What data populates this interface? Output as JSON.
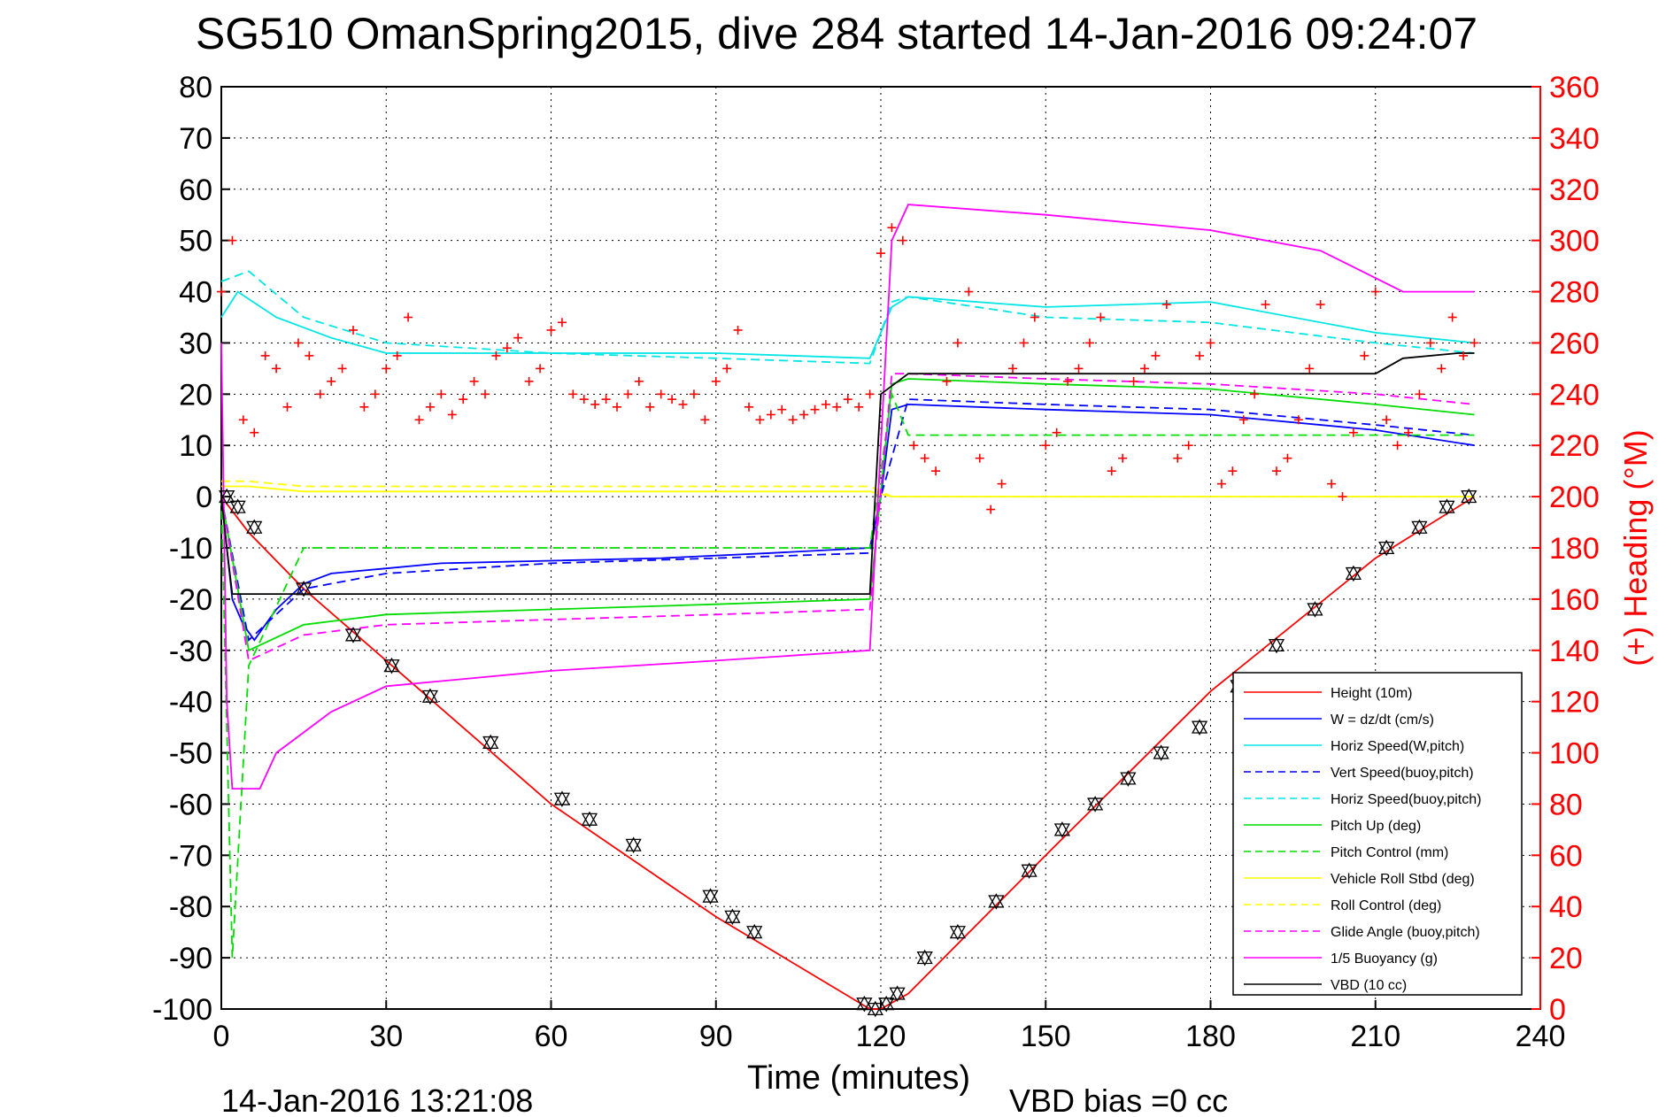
{
  "chart_data": {
    "type": "line",
    "title": "SG510 OmanSpring2015, dive 284 started 14-Jan-2016 09:24:07",
    "xlabel": "Time (minutes)",
    "ylabel": "",
    "ylabel_right": "(+) Heading (°M)",
    "xlim": [
      0,
      240
    ],
    "ylim": [
      -100,
      80
    ],
    "ylim_right": [
      0,
      360
    ],
    "x_ticks": [
      0,
      30,
      60,
      90,
      120,
      150,
      180,
      210,
      240
    ],
    "y_ticks": [
      80,
      70,
      60,
      50,
      40,
      30,
      20,
      10,
      0,
      -10,
      -20,
      -30,
      -40,
      -50,
      -60,
      -70,
      -80,
      -90,
      -100
    ],
    "y_ticks_right": [
      360,
      340,
      320,
      300,
      280,
      260,
      240,
      220,
      200,
      180,
      160,
      140,
      120,
      100,
      80,
      60,
      40,
      20,
      0
    ],
    "grid": true,
    "legend_position": "bottom-right",
    "footer_left": "14-Jan-2016 13:21:08",
    "footer_right": "VBD bias =0 cc",
    "colors": {
      "heading": "#ff0000",
      "red": "#ff0000",
      "blue": "#0000ff",
      "cyan": "#00e5e5",
      "green": "#00dd00",
      "yellow": "#ffff00",
      "magenta": "#ff00ff",
      "black": "#000000"
    },
    "series": [
      {
        "name": "Height (10m)",
        "color": "#ff0000",
        "dash": "solid",
        "x": [
          0,
          5,
          15,
          30,
          60,
          90,
          118,
          120,
          125,
          150,
          180,
          210,
          228
        ],
        "y": [
          0,
          -7,
          -18,
          -32,
          -60,
          -82,
          -100,
          -100,
          -97,
          -70,
          -38,
          -12,
          0
        ]
      },
      {
        "name": "W = dz/dt (cm/s)",
        "color": "#0000ff",
        "dash": "solid",
        "x": [
          0,
          2,
          4,
          6,
          10,
          15,
          20,
          30,
          40,
          60,
          80,
          100,
          118,
          120,
          122,
          125,
          150,
          180,
          210,
          228
        ],
        "y": [
          0,
          -20,
          -25,
          -28,
          -22,
          -17,
          -15,
          -14,
          -13,
          -12.5,
          -12,
          -11,
          -10,
          0,
          17,
          18,
          17,
          16,
          13,
          10
        ]
      },
      {
        "name": "Horiz Speed(W,pitch)",
        "color": "#00e5e5",
        "dash": "solid",
        "x": [
          0,
          3,
          10,
          20,
          30,
          60,
          90,
          118,
          122,
          125,
          150,
          180,
          210,
          228
        ],
        "y": [
          35,
          40,
          35,
          31,
          28,
          28,
          28,
          27,
          37,
          39,
          37,
          38,
          32,
          30
        ]
      },
      {
        "name": "Vert Speed(buoy,pitch)",
        "color": "#0000ff",
        "dash": "dashed",
        "x": [
          0,
          5,
          15,
          30,
          60,
          90,
          118,
          120,
          125,
          150,
          180,
          210,
          228
        ],
        "y": [
          0,
          -28,
          -18,
          -15,
          -13,
          -12,
          -11,
          0,
          19,
          18,
          17,
          14,
          12
        ]
      },
      {
        "name": "Horiz Speed(buoy,pitch)",
        "color": "#00e5e5",
        "dash": "dashed",
        "x": [
          0,
          5,
          15,
          30,
          60,
          90,
          118,
          122,
          125,
          150,
          180,
          210,
          228
        ],
        "y": [
          42,
          44,
          35,
          30,
          28,
          27,
          26,
          38,
          39,
          35,
          34,
          30,
          28
        ]
      },
      {
        "name": "Pitch Up (deg)",
        "color": "#00dd00",
        "dash": "solid",
        "x": [
          0,
          5,
          15,
          30,
          60,
          90,
          118,
          122,
          125,
          150,
          180,
          210,
          228
        ],
        "y": [
          0,
          -30,
          -25,
          -23,
          -22,
          -21,
          -20,
          22,
          23,
          22,
          21,
          18,
          16
        ]
      },
      {
        "name": "Pitch Control (mm)",
        "color": "#00dd00",
        "dash": "dashed",
        "x": [
          0,
          2,
          5,
          15,
          118,
          122,
          125,
          228
        ],
        "y": [
          0,
          -90,
          -33,
          -10,
          -10,
          20,
          12,
          12
        ]
      },
      {
        "name": "Vehicle Roll Stbd (deg)",
        "color": "#ffff00",
        "dash": "solid",
        "x": [
          0,
          5,
          15,
          30,
          60,
          90,
          118,
          122,
          150,
          180,
          210,
          228
        ],
        "y": [
          2,
          2,
          1,
          1,
          1,
          1,
          1,
          0,
          0,
          0,
          0,
          0
        ]
      },
      {
        "name": "Roll Control (deg)",
        "color": "#ffff00",
        "dash": "dashed",
        "x": [
          0,
          5,
          15,
          30,
          60,
          90,
          118,
          122,
          150,
          180,
          210,
          228
        ],
        "y": [
          3,
          3,
          2,
          2,
          2,
          2,
          2,
          0,
          0,
          0,
          0,
          0
        ]
      },
      {
        "name": "Glide Angle (buoy,pitch)",
        "color": "#ff00ff",
        "dash": "dashed",
        "x": [
          0,
          5,
          15,
          30,
          60,
          90,
          118,
          122,
          125,
          150,
          180,
          210,
          228
        ],
        "y": [
          0,
          -32,
          -27,
          -25,
          -24,
          -23,
          -22,
          24,
          24,
          23,
          22,
          20,
          18
        ]
      },
      {
        "name": "1/5 Buoyancy (g)",
        "color": "#ff00ff",
        "dash": "solid",
        "x": [
          0,
          1,
          2,
          7,
          10,
          20,
          30,
          60,
          90,
          118,
          122,
          125,
          150,
          180,
          200,
          215,
          220,
          228
        ],
        "y": [
          30,
          -40,
          -57,
          -57,
          -50,
          -42,
          -37,
          -34,
          -32,
          -30,
          50,
          57,
          55,
          52,
          48,
          40,
          40,
          40
        ]
      },
      {
        "name": "VBD (10 cc)",
        "color": "#000000",
        "dash": "solid",
        "x": [
          0,
          1,
          2,
          118,
          120,
          125,
          210,
          215,
          225,
          228
        ],
        "y": [
          0,
          -10,
          -19,
          -19,
          20,
          24,
          24,
          27,
          28,
          28
        ]
      }
    ],
    "heading_series": {
      "name": "Heading (+)",
      "color": "#ff0000",
      "marker": "+",
      "x": [
        0,
        2,
        4,
        6,
        8,
        10,
        12,
        14,
        16,
        18,
        20,
        22,
        24,
        26,
        28,
        30,
        32,
        34,
        36,
        38,
        40,
        42,
        44,
        46,
        48,
        50,
        52,
        54,
        56,
        58,
        60,
        62,
        64,
        66,
        68,
        70,
        72,
        74,
        76,
        78,
        80,
        82,
        84,
        86,
        88,
        90,
        92,
        94,
        96,
        98,
        100,
        102,
        104,
        106,
        108,
        110,
        112,
        114,
        116,
        118,
        120,
        122,
        124,
        126,
        128,
        130,
        132,
        134,
        136,
        138,
        140,
        142,
        144,
        146,
        148,
        150,
        152,
        154,
        156,
        158,
        160,
        162,
        164,
        166,
        168,
        170,
        172,
        174,
        176,
        178,
        180,
        182,
        184,
        186,
        188,
        190,
        192,
        194,
        196,
        198,
        200,
        202,
        204,
        206,
        208,
        210,
        212,
        214,
        216,
        218,
        220,
        222,
        224,
        226,
        228
      ],
      "y": [
        280,
        300,
        230,
        225,
        255,
        250,
        235,
        260,
        255,
        240,
        245,
        250,
        265,
        235,
        240,
        250,
        255,
        270,
        230,
        235,
        240,
        232,
        238,
        245,
        240,
        255,
        258,
        262,
        245,
        250,
        265,
        268,
        240,
        238,
        236,
        238,
        235,
        240,
        245,
        235,
        240,
        238,
        236,
        240,
        230,
        245,
        250,
        265,
        235,
        230,
        232,
        234,
        230,
        232,
        234,
        236,
        235,
        238,
        235,
        240,
        295,
        305,
        300,
        220,
        215,
        210,
        245,
        260,
        280,
        215,
        195,
        205,
        250,
        260,
        270,
        220,
        225,
        245,
        250,
        260,
        270,
        210,
        215,
        245,
        250,
        255,
        275,
        215,
        220,
        255,
        260,
        205,
        210,
        230,
        240,
        275,
        210,
        215,
        230,
        250,
        275,
        205,
        200,
        225,
        255,
        280,
        230,
        220,
        225,
        240,
        260,
        250,
        270,
        255,
        260
      ]
    },
    "triangle_markers": {
      "name": "",
      "x": [
        1,
        3,
        6,
        15,
        24,
        31,
        38,
        49,
        62,
        67,
        75,
        89,
        93,
        97,
        117,
        119,
        121,
        123,
        128,
        134,
        141,
        147,
        153,
        159,
        165,
        171,
        178,
        185,
        192,
        199,
        206,
        212,
        218,
        223,
        227
      ],
      "y": [
        0,
        -2,
        -6,
        -18,
        -27,
        -33,
        -39,
        -48,
        -59,
        -63,
        -68,
        -78,
        -82,
        -85,
        -99,
        -100,
        -99,
        -97,
        -90,
        -85,
        -79,
        -73,
        -65,
        -60,
        -55,
        -50,
        -45,
        -37,
        -29,
        -22,
        -15,
        -10,
        -6,
        -2,
        0
      ]
    }
  }
}
